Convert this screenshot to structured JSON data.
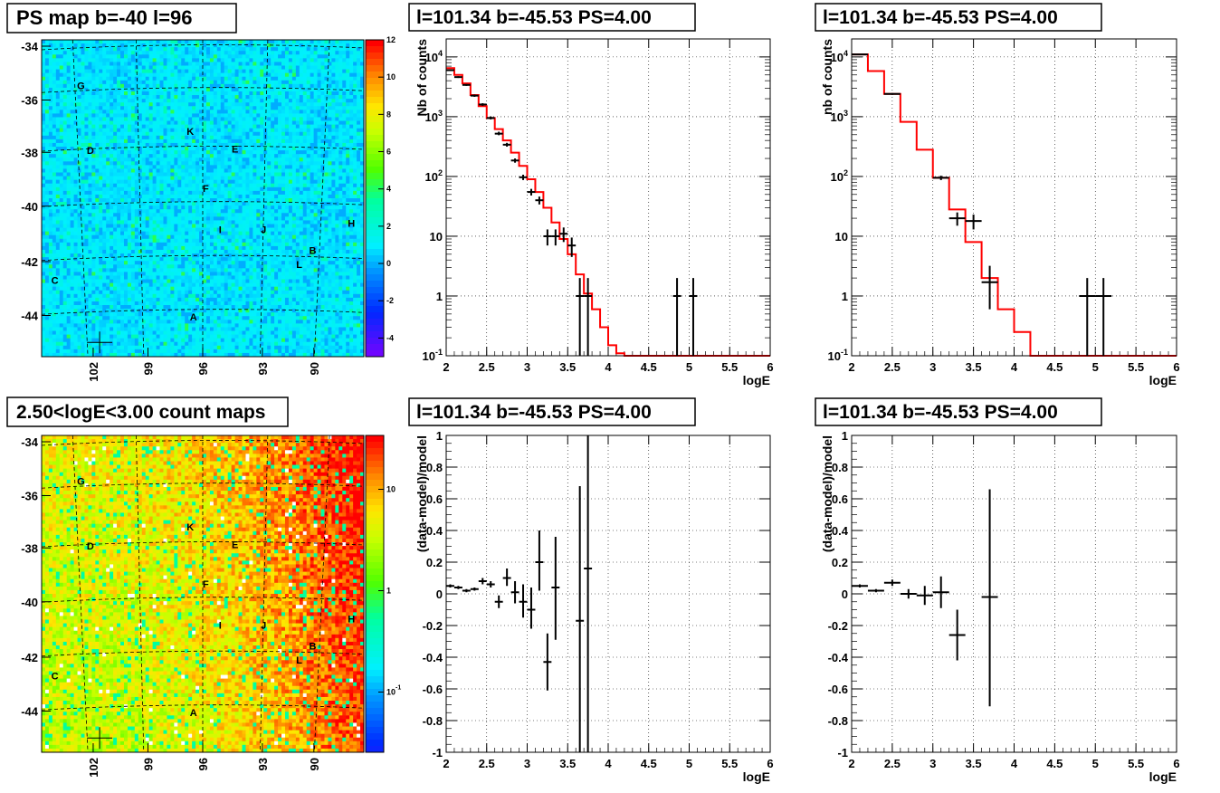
{
  "chart_data": [
    {
      "id": "psmap",
      "type": "heatmap",
      "title": "PS map b=-40 l=96",
      "y_ticks": [
        "-34",
        "-36",
        "-38",
        "-40",
        "-42",
        "-44"
      ],
      "x_ticks": [
        "102",
        "99",
        "96",
        "93",
        "90"
      ],
      "colorbar_ticks": [
        "12",
        "10",
        "8",
        "6",
        "4",
        "2",
        "0",
        "-2",
        "-4"
      ],
      "colorbar_range": [
        -5,
        12
      ],
      "source_labels": [
        "G",
        "K",
        "D",
        "E",
        "F",
        "I",
        "J",
        "H",
        "B",
        "L",
        "C",
        "A"
      ]
    },
    {
      "id": "spec1",
      "type": "line",
      "title": "l=101.34 b=-45.53 PS=4.00",
      "xlabel": "logE",
      "ylabel": "Nb of counts",
      "xlim": [
        2,
        6
      ],
      "ylim": [
        0.1,
        20000
      ],
      "yscale": "log",
      "x_ticks": [
        "2",
        "2.5",
        "3",
        "3.5",
        "4",
        "4.5",
        "5",
        "5.5",
        "6"
      ],
      "y_ticks": [
        "10^{-1}",
        "1",
        "10",
        "10^{2}",
        "10^{3}",
        "10^{4}"
      ],
      "model_edges": [
        2.0,
        2.1,
        2.2,
        2.3,
        2.4,
        2.5,
        2.6,
        2.7,
        2.8,
        2.9,
        3.0,
        3.1,
        3.2,
        3.3,
        3.4,
        3.5,
        3.6,
        3.7,
        3.8,
        3.9,
        4.0,
        4.1,
        4.2,
        6.0
      ],
      "model_values": [
        6500,
        5000,
        3600,
        2300,
        1500,
        950,
        620,
        400,
        250,
        150,
        90,
        55,
        30,
        17,
        9,
        5,
        2.3,
        1.1,
        0.6,
        0.3,
        0.15,
        0.11,
        0.1
      ],
      "data": [
        {
          "x": 2.05,
          "y": 6000,
          "lo": 5800,
          "hi": 6200,
          "xerr": 0.05
        },
        {
          "x": 2.15,
          "y": 4600,
          "lo": 4450,
          "hi": 4750,
          "xerr": 0.05
        },
        {
          "x": 2.25,
          "y": 3400,
          "lo": 3280,
          "hi": 3520,
          "xerr": 0.05
        },
        {
          "x": 2.35,
          "y": 2250,
          "lo": 2150,
          "hi": 2350,
          "xerr": 0.05
        },
        {
          "x": 2.45,
          "y": 1600,
          "lo": 1520,
          "hi": 1680,
          "xerr": 0.05
        },
        {
          "x": 2.55,
          "y": 950,
          "lo": 900,
          "hi": 1010,
          "xerr": 0.05
        },
        {
          "x": 2.65,
          "y": 520,
          "lo": 490,
          "hi": 560,
          "xerr": 0.05
        },
        {
          "x": 2.75,
          "y": 340,
          "lo": 315,
          "hi": 365,
          "xerr": 0.05
        },
        {
          "x": 2.85,
          "y": 185,
          "lo": 170,
          "hi": 200,
          "xerr": 0.05
        },
        {
          "x": 2.95,
          "y": 97,
          "lo": 87,
          "hi": 107,
          "xerr": 0.05
        },
        {
          "x": 3.05,
          "y": 55,
          "lo": 48,
          "hi": 62,
          "xerr": 0.05
        },
        {
          "x": 3.15,
          "y": 40,
          "lo": 34,
          "hi": 46,
          "xerr": 0.05
        },
        {
          "x": 3.25,
          "y": 10,
          "lo": 7,
          "hi": 13,
          "xerr": 0.05
        },
        {
          "x": 3.35,
          "y": 10,
          "lo": 7,
          "hi": 13,
          "xerr": 0.05
        },
        {
          "x": 3.45,
          "y": 11,
          "lo": 8,
          "hi": 14,
          "xerr": 0.05
        },
        {
          "x": 3.55,
          "y": 7,
          "lo": 4.5,
          "hi": 9.5,
          "xerr": 0.05
        },
        {
          "x": 3.65,
          "y": 1,
          "lo": 0.1,
          "hi": 2,
          "xerr": 0.05
        },
        {
          "x": 3.75,
          "y": 1,
          "lo": 0.1,
          "hi": 2,
          "xerr": 0.05
        },
        {
          "x": 4.85,
          "y": 1,
          "lo": 0.1,
          "hi": 2,
          "xerr": 0.05
        },
        {
          "x": 5.05,
          "y": 1,
          "lo": 0.1,
          "hi": 2,
          "xerr": 0.05
        }
      ]
    },
    {
      "id": "spec2",
      "type": "line",
      "title": "l=101.34 b=-45.53 PS=4.00",
      "xlabel": "logE",
      "ylabel": "nb of counts",
      "xlim": [
        2,
        6
      ],
      "ylim": [
        0.1,
        20000
      ],
      "yscale": "log",
      "x_ticks": [
        "2",
        "2.5",
        "3",
        "3.5",
        "4",
        "4.5",
        "5",
        "5.5",
        "6"
      ],
      "y_ticks": [
        "10^{-1}",
        "1",
        "10",
        "10^{2}",
        "10^{3}",
        "10^{4}"
      ],
      "model_edges": [
        2.0,
        2.2,
        2.4,
        2.6,
        2.8,
        3.0,
        3.2,
        3.4,
        3.6,
        3.8,
        4.0,
        4.2,
        6.0
      ],
      "model_values": [
        11000,
        5800,
        2400,
        820,
        280,
        95,
        28,
        8,
        2,
        0.6,
        0.25,
        0.1
      ],
      "data": [
        {
          "x": 2.1,
          "y": 11000,
          "lo": 10800,
          "hi": 11200,
          "xerr": 0.1
        },
        {
          "x": 2.5,
          "y": 2400,
          "lo": 2320,
          "hi": 2480,
          "xerr": 0.1
        },
        {
          "x": 3.1,
          "y": 95,
          "lo": 87,
          "hi": 103,
          "xerr": 0.1
        },
        {
          "x": 3.3,
          "y": 20,
          "lo": 15,
          "hi": 25,
          "xerr": 0.1
        },
        {
          "x": 3.5,
          "y": 18,
          "lo": 13,
          "hi": 23,
          "xerr": 0.1
        },
        {
          "x": 3.7,
          "y": 1.7,
          "lo": 0.6,
          "hi": 3.2,
          "xerr": 0.1
        },
        {
          "x": 4.9,
          "y": 1,
          "lo": 0.1,
          "hi": 2,
          "xerr": 0.1
        },
        {
          "x": 5.1,
          "y": 1,
          "lo": 0.1,
          "hi": 2,
          "xerr": 0.1
        }
      ]
    },
    {
      "id": "cmap",
      "type": "heatmap",
      "title": "2.50<logE<3.00 count maps",
      "y_ticks": [
        "-34",
        "-36",
        "-38",
        "-40",
        "-42",
        "-44"
      ],
      "x_ticks": [
        "102",
        "99",
        "96",
        "93",
        "90"
      ],
      "colorbar_ticks": [
        "10",
        "1",
        "10^{-1}"
      ],
      "colorbar_scale": "log",
      "source_labels": [
        "G",
        "K",
        "D",
        "E",
        "F",
        "I",
        "J",
        "H",
        "B",
        "L",
        "C",
        "A"
      ]
    },
    {
      "id": "res1",
      "type": "scatter",
      "title": "l=101.34 b=-45.53 PS=4.00",
      "xlabel": "logE",
      "ylabel": "(data-model)/model",
      "xlim": [
        2,
        6
      ],
      "ylim": [
        -1,
        1
      ],
      "x_ticks": [
        "2",
        "2.5",
        "3",
        "3.5",
        "4",
        "4.5",
        "5",
        "5.5",
        "6"
      ],
      "y_ticks": [
        "-1",
        "-0.8",
        "-0.6",
        "-0.4",
        "-0.2",
        "0",
        "0.2",
        "0.4",
        "0.6",
        "0.8",
        "1"
      ],
      "data": [
        {
          "x": 2.05,
          "y": 0.05,
          "lo": 0.04,
          "hi": 0.06,
          "xerr": 0.05
        },
        {
          "x": 2.15,
          "y": 0.04,
          "lo": 0.03,
          "hi": 0.05,
          "xerr": 0.05
        },
        {
          "x": 2.25,
          "y": 0.02,
          "lo": 0.01,
          "hi": 0.03,
          "xerr": 0.05
        },
        {
          "x": 2.35,
          "y": 0.03,
          "lo": 0.02,
          "hi": 0.04,
          "xerr": 0.05
        },
        {
          "x": 2.45,
          "y": 0.08,
          "lo": 0.06,
          "hi": 0.1,
          "xerr": 0.05
        },
        {
          "x": 2.55,
          "y": 0.06,
          "lo": 0.04,
          "hi": 0.08,
          "xerr": 0.05
        },
        {
          "x": 2.65,
          "y": -0.05,
          "lo": -0.09,
          "hi": -0.01,
          "xerr": 0.05
        },
        {
          "x": 2.75,
          "y": 0.1,
          "lo": 0.05,
          "hi": 0.16,
          "xerr": 0.05
        },
        {
          "x": 2.85,
          "y": 0.01,
          "lo": -0.06,
          "hi": 0.08,
          "xerr": 0.05
        },
        {
          "x": 2.95,
          "y": -0.05,
          "lo": -0.15,
          "hi": 0.06,
          "xerr": 0.05
        },
        {
          "x": 3.05,
          "y": -0.1,
          "lo": -0.22,
          "hi": 0.04,
          "xerr": 0.05
        },
        {
          "x": 3.15,
          "y": 0.2,
          "lo": 0.02,
          "hi": 0.4,
          "xerr": 0.05
        },
        {
          "x": 3.25,
          "y": -0.43,
          "lo": -0.61,
          "hi": -0.25,
          "xerr": 0.05
        },
        {
          "x": 3.35,
          "y": 0.04,
          "lo": -0.29,
          "hi": 0.36,
          "xerr": 0.05
        },
        {
          "x": 3.65,
          "y": -0.17,
          "lo": -1.0,
          "hi": 0.68,
          "xerr": 0.05
        },
        {
          "x": 3.75,
          "y": 0.16,
          "lo": -1.0,
          "hi": 1.0,
          "xerr": 0.05
        }
      ]
    },
    {
      "id": "res2",
      "type": "scatter",
      "title": "l=101.34 b=-45.53 PS=4.00",
      "xlabel": "logE",
      "ylabel": "(data-model)/model",
      "xlim": [
        2,
        6
      ],
      "ylim": [
        -1,
        1
      ],
      "x_ticks": [
        "2",
        "2.5",
        "3",
        "3.5",
        "4",
        "4.5",
        "5",
        "5.5",
        "6"
      ],
      "y_ticks": [
        "-1",
        "-0.8",
        "-0.6",
        "-0.4",
        "-0.2",
        "0",
        "0.2",
        "0.4",
        "0.6",
        "0.8",
        "1"
      ],
      "data": [
        {
          "x": 2.1,
          "y": 0.05,
          "lo": 0.04,
          "hi": 0.06,
          "xerr": 0.1
        },
        {
          "x": 2.3,
          "y": 0.02,
          "lo": 0.01,
          "hi": 0.03,
          "xerr": 0.1
        },
        {
          "x": 2.5,
          "y": 0.07,
          "lo": 0.05,
          "hi": 0.09,
          "xerr": 0.1
        },
        {
          "x": 2.7,
          "y": 0.0,
          "lo": -0.03,
          "hi": 0.03,
          "xerr": 0.1
        },
        {
          "x": 2.9,
          "y": -0.01,
          "lo": -0.07,
          "hi": 0.05,
          "xerr": 0.1
        },
        {
          "x": 3.1,
          "y": 0.01,
          "lo": -0.09,
          "hi": 0.11,
          "xerr": 0.1
        },
        {
          "x": 3.3,
          "y": -0.26,
          "lo": -0.42,
          "hi": -0.1,
          "xerr": 0.1
        },
        {
          "x": 3.7,
          "y": -0.02,
          "lo": -0.71,
          "hi": 0.66,
          "xerr": 0.1
        }
      ]
    }
  ]
}
